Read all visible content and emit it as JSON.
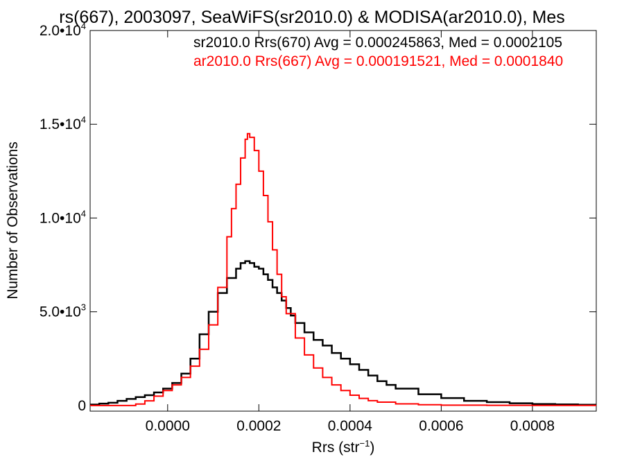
{
  "chart_data": {
    "type": "line",
    "title": "rs(667), 2003097, SeaWiFS(sr2010.0) & MODISA(ar2010.0), Mes",
    "xlabel": "Rrs (str",
    "xlabel_sup": "−1",
    "xlabel_end": ")",
    "ylabel": "Number of Observations",
    "xlim": [
      -0.00017,
      0.00094
    ],
    "ylim": [
      -300,
      20000
    ],
    "x_ticks": [
      {
        "value": 0.0,
        "label": "0.0000"
      },
      {
        "value": 0.0002,
        "label": "0.0002"
      },
      {
        "value": 0.0004,
        "label": "0.0004"
      },
      {
        "value": 0.0006,
        "label": "0.0006"
      },
      {
        "value": 0.0008,
        "label": "0.0008"
      }
    ],
    "y_ticks": [
      {
        "value": 0,
        "label": "0",
        "sup": ""
      },
      {
        "value": 5000,
        "label": "5.0•10",
        "sup": "3"
      },
      {
        "value": 10000,
        "label": "1.0•10",
        "sup": "4"
      },
      {
        "value": 15000,
        "label": "1.5•10",
        "sup": "4"
      },
      {
        "value": 20000,
        "label": "2.0•10",
        "sup": "4"
      }
    ],
    "legend": [
      {
        "text": "sr2010.0 Rrs(670) Avg = 0.000245863, Med = 0.0002105",
        "color": "#000000"
      },
      {
        "text": "ar2010.0 Rrs(667) Avg = 0.000191521, Med = 0.0001840",
        "color": "#ff0000"
      }
    ],
    "legend_position": "top-right",
    "series": [
      {
        "color": "#000000",
        "x": [
          -0.00017,
          -0.00015,
          -0.00013,
          -0.00011,
          -9e-05,
          -7e-05,
          -5e-05,
          -3e-05,
          -1e-05,
          1e-05,
          3e-05,
          5e-05,
          7e-05,
          9e-05,
          0.00011,
          0.00013,
          0.00015,
          0.00016,
          0.00017,
          0.00018,
          0.00019,
          0.0002,
          0.00021,
          0.00022,
          0.00023,
          0.00024,
          0.00025,
          0.00026,
          0.00027,
          0.00028,
          0.0003,
          0.00032,
          0.00034,
          0.00036,
          0.00038,
          0.0004,
          0.00042,
          0.00044,
          0.00046,
          0.00048,
          0.0005,
          0.00055,
          0.0006,
          0.00065,
          0.0007,
          0.00075,
          0.0008,
          0.00085,
          0.0009,
          0.00094
        ],
        "y": [
          50,
          100,
          150,
          250,
          350,
          450,
          550,
          700,
          900,
          1200,
          1700,
          2500,
          3800,
          5000,
          6000,
          6800,
          7300,
          7600,
          7700,
          7600,
          7400,
          7300,
          7000,
          6700,
          6300,
          6000,
          5600,
          5200,
          4800,
          4400,
          3900,
          3500,
          3200,
          2800,
          2500,
          2200,
          1900,
          1600,
          1300,
          1100,
          900,
          600,
          400,
          250,
          180,
          120,
          80,
          60,
          40,
          30
        ]
      },
      {
        "color": "#ff0000",
        "x": [
          -0.00017,
          -0.0001,
          -7e-05,
          -5e-05,
          -3e-05,
          -1e-05,
          1e-05,
          3e-05,
          5e-05,
          7e-05,
          9e-05,
          0.00011,
          0.00013,
          0.00014,
          0.00015,
          0.00016,
          0.00017,
          0.000175,
          0.00018,
          0.00019,
          0.0002,
          0.00021,
          0.00022,
          0.00023,
          0.00024,
          0.00025,
          0.00026,
          0.00028,
          0.0003,
          0.00032,
          0.00034,
          0.00036,
          0.00038,
          0.0004,
          0.00042,
          0.00044,
          0.00046,
          0.0005,
          0.00055,
          0.0006,
          0.0007,
          0.0008,
          0.00094
        ],
        "y": [
          0,
          0,
          80,
          250,
          500,
          800,
          1100,
          1500,
          2100,
          3000,
          4300,
          6300,
          9000,
          10500,
          11800,
          13200,
          14200,
          14500,
          14300,
          13600,
          12500,
          11200,
          9800,
          8300,
          7000,
          5800,
          4900,
          3600,
          2700,
          2000,
          1500,
          1100,
          800,
          550,
          380,
          260,
          180,
          90,
          40,
          20,
          10,
          5,
          0
        ]
      }
    ]
  }
}
